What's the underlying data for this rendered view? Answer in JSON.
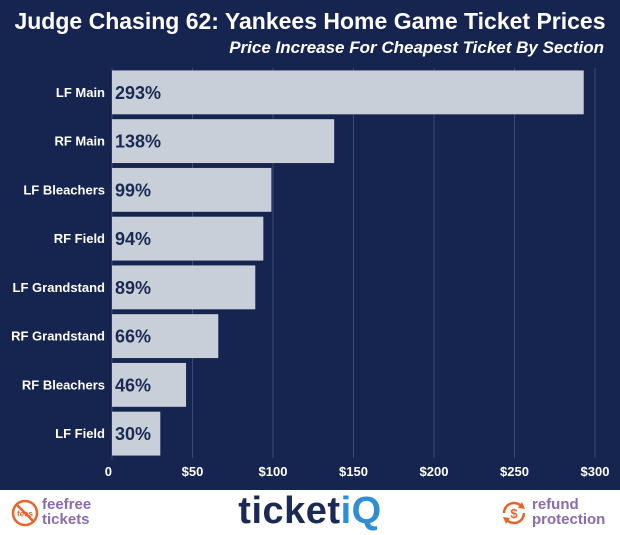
{
  "title": "Judge Chasing 62: Yankees Home Game Ticket Prices",
  "subtitle": "Price Increase For Cheapest Ticket By Section",
  "colors": {
    "background": "#15254f",
    "bar": "#c8cfd8",
    "bar_label": "#1a2a55",
    "axis_text": "#ffffff",
    "grid": "#3a4a74",
    "footer_bg": "#ffffff",
    "brand_purple": "#8a6ab0",
    "brand_orange": "#e3652c",
    "brand_navy": "#1a2a55",
    "brand_blue": "#2f8fd6"
  },
  "chart_data": {
    "type": "bar",
    "orientation": "horizontal",
    "categories": [
      "LF Main",
      "RF Main",
      "LF Bleachers",
      "RF Field",
      "LF Grandstand",
      "RF Grandstand",
      "RF Bleachers",
      "LF Field"
    ],
    "values": [
      293,
      138,
      99,
      94,
      89,
      66,
      46,
      30
    ],
    "data_labels": [
      "293%",
      "138%",
      "99%",
      "94%",
      "89%",
      "66%",
      "46%",
      "30%"
    ],
    "xlim": [
      0,
      300
    ],
    "xticks": [
      0,
      50,
      100,
      150,
      200,
      250,
      300
    ],
    "xtick_labels": [
      "0",
      "$50",
      "$100",
      "$150",
      "$200",
      "$250",
      "$300"
    ],
    "grid": true,
    "legend": false
  },
  "footer": {
    "left_brand_line1": "feefree",
    "left_brand_line2": "tickets",
    "left_logo_text": "fees",
    "center_brand_main": "ticket",
    "center_brand_accent": "iQ",
    "right_logo_symbol": "$",
    "right_brand_line1": "refund",
    "right_brand_line2": "protection",
    "left_icon": "no-fees-icon",
    "right_icon": "dollar-refresh-icon"
  }
}
